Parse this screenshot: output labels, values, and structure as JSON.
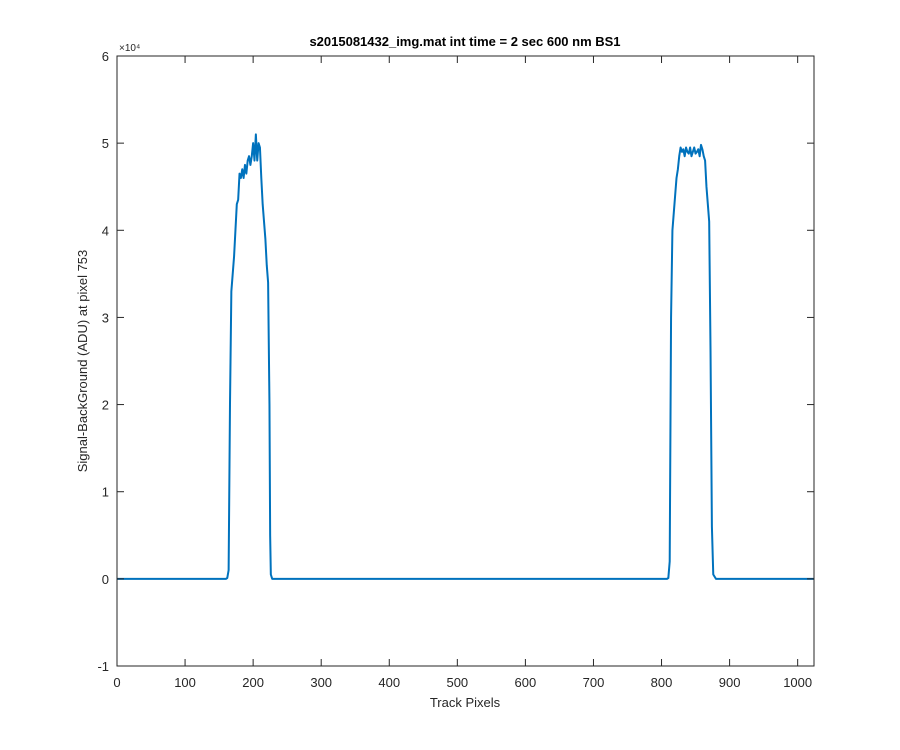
{
  "chart_data": {
    "type": "line",
    "title": "s2015081432_img.mat int time = 2 sec  600 nm BS1",
    "xlabel": "Track Pixels",
    "ylabel": "Signal-BackGround (ADU) at pixel 753",
    "xlim": [
      0,
      1024
    ],
    "ylim": [
      -10000,
      60000
    ],
    "x_ticks": [
      0,
      100,
      200,
      300,
      400,
      500,
      600,
      700,
      800,
      900,
      1000
    ],
    "x_tick_labels": [
      "0",
      "100",
      "200",
      "300",
      "400",
      "500",
      "600",
      "700",
      "800",
      "900",
      "1000"
    ],
    "y_ticks": [
      -10000,
      0,
      10000,
      20000,
      30000,
      40000,
      50000,
      60000
    ],
    "y_tick_labels": [
      "-1",
      "0",
      "1",
      "2",
      "3",
      "4",
      "5",
      "6"
    ],
    "y_exponent_label": "×10⁴",
    "grid": false,
    "series_color": "#0072BD",
    "series": [
      {
        "x": [
          0,
          100,
          155,
          160,
          162,
          164,
          166,
          168,
          170,
          172,
          174,
          176,
          178,
          180,
          182,
          184,
          186,
          188,
          190,
          192,
          194,
          196,
          198,
          200,
          202,
          204,
          206,
          208,
          210,
          212,
          214,
          216,
          218,
          220,
          222,
          224,
          225,
          226,
          228,
          230,
          240,
          400,
          600,
          800,
          808,
          810,
          812,
          814,
          816,
          818,
          820,
          822,
          824,
          826,
          828,
          830,
          832,
          834,
          836,
          838,
          840,
          842,
          844,
          846,
          848,
          850,
          852,
          854,
          856,
          858,
          860,
          862,
          864,
          866,
          868,
          870,
          872,
          874,
          876,
          880,
          900,
          1024
        ],
        "y": [
          0,
          0,
          0,
          0,
          100,
          1000,
          20000,
          33000,
          35000,
          37000,
          40000,
          43000,
          43500,
          46500,
          46000,
          47000,
          46000,
          47500,
          46500,
          48000,
          48500,
          47500,
          48500,
          50000,
          48000,
          51000,
          48000,
          50000,
          49500,
          46000,
          43000,
          41000,
          39000,
          36000,
          34000,
          20000,
          5000,
          500,
          0,
          0,
          0,
          0,
          0,
          0,
          0,
          100,
          2000,
          30000,
          40000,
          42000,
          44000,
          46000,
          47000,
          48500,
          49500,
          49000,
          49300,
          48500,
          49500,
          49000,
          48800,
          49500,
          48500,
          49000,
          49500,
          48800,
          49000,
          49300,
          48500,
          49800,
          49300,
          48500,
          48000,
          45000,
          43000,
          41000,
          26000,
          6000,
          500,
          0,
          0,
          0
        ]
      }
    ]
  }
}
